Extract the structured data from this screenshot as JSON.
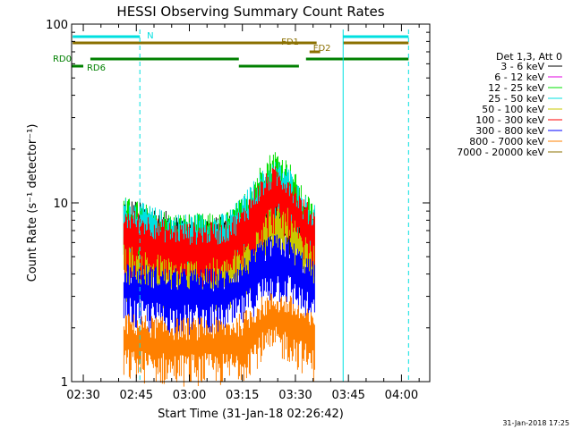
{
  "chart_data": {
    "type": "line",
    "title": "HESSI Observing Summary Count Rates",
    "xlabel": "Start Time (31-Jan-18 02:26:42)",
    "ylabel": "Count Rate (s⁻¹ detector⁻¹)",
    "y_scale": "log",
    "ylim": [
      1,
      100
    ],
    "xlim": [
      "02:26:42",
      "04:08:00"
    ],
    "x_ticks": [
      "02:30",
      "02:45",
      "03:00",
      "03:15",
      "03:30",
      "03:45",
      "04:00"
    ],
    "y_ticks": [
      "1",
      "10",
      "100"
    ],
    "timestamp": "31-Jan-2018 17:25",
    "legend": {
      "title": "Det 1,3, Att 0",
      "placement": "right",
      "entries": [
        {
          "name": "3 - 6 keV",
          "color": "#000000"
        },
        {
          "name": "6 - 12 keV",
          "color": "#e000e0"
        },
        {
          "name": "12 - 25 keV",
          "color": "#00e000"
        },
        {
          "name": "25 - 50 keV",
          "color": "#00e0e0"
        },
        {
          "name": "50 - 100 keV",
          "color": "#c8c800"
        },
        {
          "name": "100 - 300 keV",
          "color": "#ff0000"
        },
        {
          "name": "300 - 800 keV",
          "color": "#0000ff"
        },
        {
          "name": "800 - 7000 keV",
          "color": "#ff8000"
        },
        {
          "name": "7000 - 20000 keV",
          "color": "#8b7000"
        }
      ]
    },
    "flag_bars": [
      {
        "label": "N",
        "color": "#00e0e0",
        "segments": [
          [
            "02:27:00",
            "02:46:00"
          ],
          [
            "03:43:30",
            "04:02:00"
          ]
        ]
      },
      {
        "label": "FD1",
        "color": "#8b7000",
        "segments": [
          [
            "02:27:00",
            "03:36:00"
          ],
          [
            "03:43:30",
            "04:02:00"
          ]
        ]
      },
      {
        "label": "FD2",
        "color": "#8b7000",
        "segments": [
          [
            "03:34:00",
            "03:37:00"
          ]
        ]
      },
      {
        "label": "RD0",
        "color": "#008000",
        "segments": [
          [
            "02:32:00",
            "03:14:00"
          ],
          [
            "03:33:00",
            "04:02:00"
          ]
        ]
      },
      {
        "label": "RD6",
        "color": "#008000",
        "segments": [
          [
            "02:26:42",
            "02:30:00"
          ],
          [
            "03:14:00",
            "03:31:00"
          ]
        ]
      }
    ],
    "vlines": [
      {
        "time": "02:26:42",
        "color": "#00e0e0",
        "style": "solid"
      },
      {
        "time": "02:46:00",
        "color": "#00e0e0",
        "style": "dashed"
      },
      {
        "time": "03:43:30",
        "color": "#00e0e0",
        "style": "solid"
      },
      {
        "time": "04:02:00",
        "color": "#00e0e0",
        "style": "dashed"
      }
    ],
    "data_window": [
      "02:41:30",
      "03:35:30"
    ],
    "series": [
      {
        "name": "3 - 6 keV",
        "color": "#000000",
        "times": [
          "02:42",
          "02:55",
          "03:10",
          "03:15",
          "03:20",
          "03:24",
          "03:28",
          "03:32",
          "03:35"
        ],
        "values": [
          8.0,
          6.5,
          6.2,
          7.0,
          8.5,
          9.5,
          9.0,
          7.2,
          7.0
        ]
      },
      {
        "name": "12 - 25 keV",
        "color": "#00e000",
        "times": [
          "02:42",
          "02:55",
          "03:10",
          "03:15",
          "03:20",
          "03:24",
          "03:28",
          "03:32",
          "03:35"
        ],
        "values": [
          8.0,
          6.5,
          6.5,
          8.0,
          12.0,
          15.0,
          13.0,
          9.0,
          7.5
        ]
      },
      {
        "name": "25 - 50 keV",
        "color": "#00e0e0",
        "times": [
          "02:42",
          "02:55",
          "03:10",
          "03:15",
          "03:20",
          "03:24",
          "03:28",
          "03:32",
          "03:35"
        ],
        "values": [
          8.0,
          6.5,
          6.5,
          8.0,
          11.0,
          13.0,
          12.0,
          8.5,
          7.5
        ]
      },
      {
        "name": "50 - 100 keV",
        "color": "#c8c800",
        "times": [
          "02:42",
          "02:55",
          "03:10",
          "03:15",
          "03:20",
          "03:24",
          "03:28",
          "03:32",
          "03:35"
        ],
        "values": [
          5.0,
          4.5,
          4.5,
          5.0,
          7.0,
          8.0,
          8.0,
          6.0,
          5.0
        ]
      },
      {
        "name": "100 - 300 keV",
        "color": "#ff0000",
        "times": [
          "02:42",
          "02:55",
          "03:10",
          "03:15",
          "03:20",
          "03:24",
          "03:28",
          "03:32",
          "03:35"
        ],
        "values": [
          7.0,
          5.8,
          5.8,
          7.0,
          10.0,
          12.0,
          11.0,
          8.0,
          7.0
        ]
      },
      {
        "name": "300 - 800 keV",
        "color": "#0000ff",
        "times": [
          "02:42",
          "02:55",
          "03:10",
          "03:15",
          "03:20",
          "03:24",
          "03:28",
          "03:32",
          "03:35"
        ],
        "values": [
          3.5,
          3.2,
          3.2,
          3.6,
          4.5,
          5.0,
          4.8,
          4.0,
          3.5
        ]
      },
      {
        "name": "800 - 7000 keV",
        "color": "#ff8000",
        "times": [
          "02:42",
          "02:55",
          "03:10",
          "03:15",
          "03:20",
          "03:24",
          "03:28",
          "03:32",
          "03:35"
        ],
        "values": [
          1.8,
          1.7,
          1.7,
          1.8,
          2.2,
          2.4,
          2.3,
          2.0,
          1.8
        ]
      }
    ]
  }
}
